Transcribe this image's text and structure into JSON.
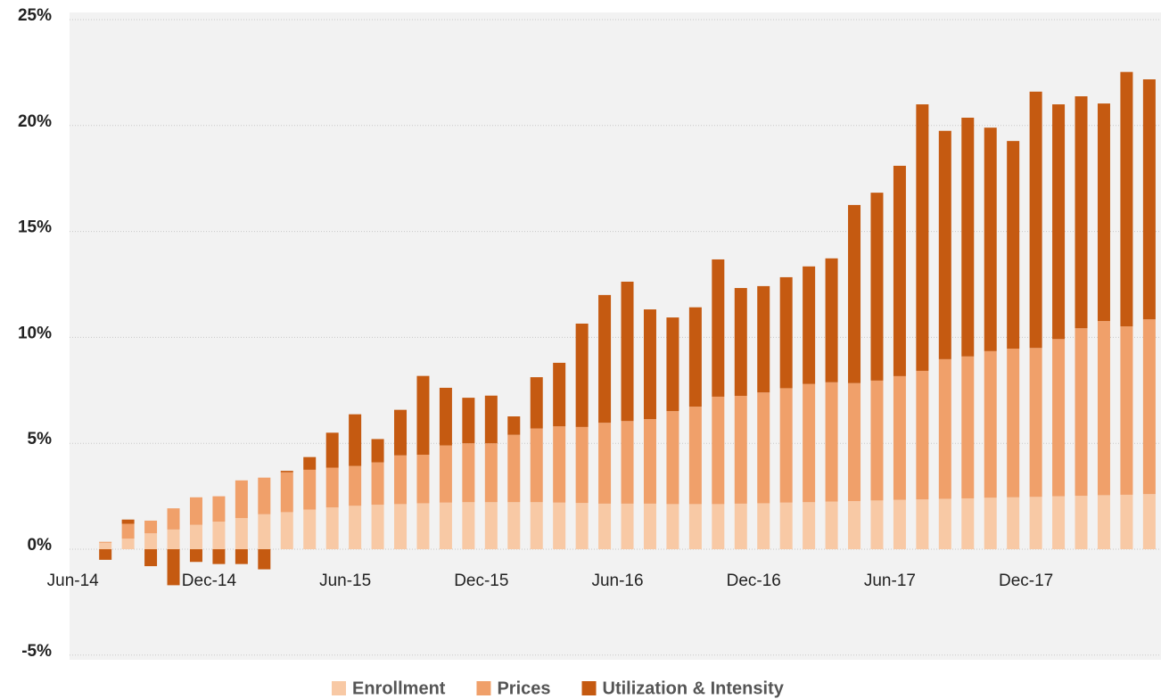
{
  "chart_data": {
    "type": "stacked_bar",
    "categories": [
      "Jun-14",
      null,
      null,
      null,
      null,
      null,
      "Dec-14",
      null,
      null,
      null,
      null,
      null,
      "Jun-15",
      null,
      null,
      null,
      null,
      null,
      "Dec-15",
      null,
      null,
      null,
      null,
      null,
      "Jun-16",
      null,
      null,
      null,
      null,
      null,
      "Dec-16",
      null,
      null,
      null,
      null,
      null,
      "Jun-17",
      null,
      null,
      null,
      null,
      null,
      "Dec-17",
      null,
      null,
      null,
      null,
      null
    ],
    "series": [
      {
        "name": "Enrollment",
        "color": "#f8c9a5",
        "values": [
          0,
          0.3,
          0.5,
          0.75,
          0.93,
          1.15,
          1.3,
          1.47,
          1.65,
          1.75,
          1.87,
          1.97,
          2.05,
          2.1,
          2.13,
          2.17,
          2.2,
          2.22,
          2.22,
          2.22,
          2.22,
          2.2,
          2.18,
          2.15,
          2.15,
          2.15,
          2.13,
          2.13,
          2.13,
          2.15,
          2.17,
          2.2,
          2.22,
          2.25,
          2.27,
          2.3,
          2.33,
          2.35,
          2.38,
          2.4,
          2.43,
          2.45,
          2.47,
          2.5,
          2.52,
          2.55,
          2.57,
          2.6
        ]
      },
      {
        "name": "Prices",
        "color": "#f0a06a",
        "values": [
          0,
          0.05,
          0.7,
          0.6,
          1.0,
          1.3,
          1.2,
          1.78,
          1.73,
          1.88,
          1.88,
          1.88,
          1.88,
          2.0,
          2.3,
          2.29,
          2.7,
          2.78,
          2.78,
          3.18,
          3.48,
          3.6,
          3.59,
          3.82,
          3.9,
          3.99,
          4.39,
          4.6,
          5.07,
          5.09,
          5.23,
          5.4,
          5.58,
          5.63,
          5.57,
          5.66,
          5.84,
          6.07,
          6.59,
          6.7,
          6.92,
          7.02,
          7.03,
          7.42,
          7.91,
          8.22,
          7.95,
          8.25
        ]
      },
      {
        "name": "Utilization & Intensity",
        "color": "#c55a11",
        "values": [
          0,
          -0.5,
          0.2,
          -0.8,
          -1.7,
          -0.6,
          -0.7,
          -0.7,
          -0.95,
          0.07,
          0.6,
          1.65,
          2.44,
          1.1,
          2.15,
          3.72,
          2.72,
          2.15,
          2.25,
          0.87,
          2.42,
          3.0,
          4.88,
          6.03,
          6.58,
          5.18,
          4.42,
          4.69,
          6.48,
          5.09,
          5.02,
          5.24,
          5.55,
          5.85,
          8.41,
          8.87,
          9.93,
          12.58,
          10.78,
          11.27,
          10.55,
          9.8,
          12.1,
          11.08,
          10.95,
          10.27,
          12.01,
          11.33
        ]
      }
    ],
    "ylim": [
      -5,
      25
    ],
    "yticks": [
      {
        "value": -5,
        "label": "-5%"
      },
      {
        "value": 0,
        "label": "0%"
      },
      {
        "value": 5,
        "label": "5%"
      },
      {
        "value": 10,
        "label": "10%"
      },
      {
        "value": 15,
        "label": "15%"
      },
      {
        "value": 20,
        "label": "20%"
      },
      {
        "value": 25,
        "label": "25%"
      }
    ],
    "grid": true,
    "legend": "bottom"
  }
}
